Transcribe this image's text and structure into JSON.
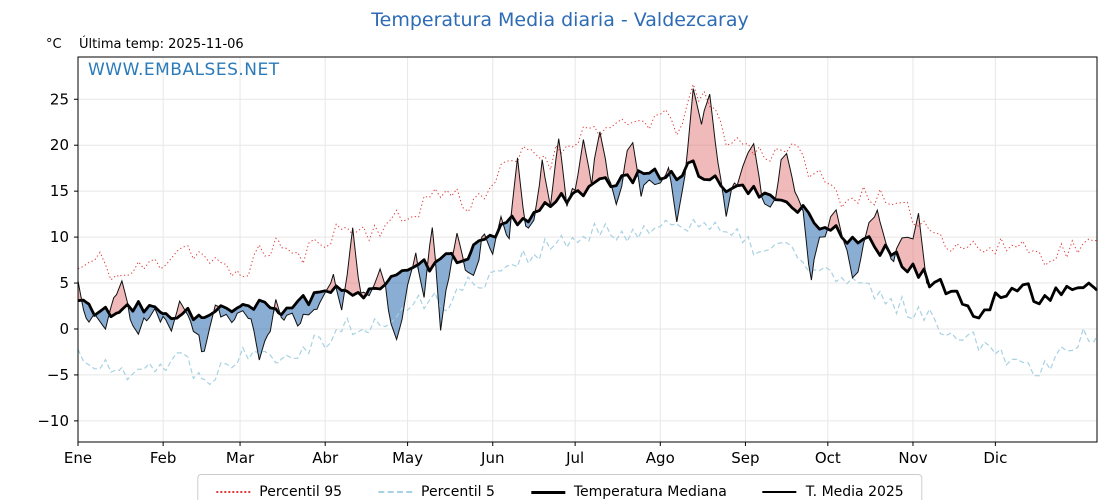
{
  "page": {
    "title": "Temperatura Media diaria - Valdezcaray",
    "unit_label": "°C",
    "last_temp_label": "Última temp: 2025-11-06",
    "watermark": "WWW.EMBALSES.NET"
  },
  "chart_data": {
    "type": "line",
    "title": "Temperatura Media diaria - Valdezcaray",
    "ylabel": "°C",
    "xlim": [
      0,
      371
    ],
    "ylim": [
      -12.3,
      29.6
    ],
    "grid": true,
    "legend_position": "bottom",
    "last_date": "2025-11-06",
    "yticks": {
      "values": [
        -10,
        -5,
        0,
        5,
        10,
        15,
        20,
        25
      ],
      "labels": [
        "−10",
        "−5",
        "0",
        "5",
        "10",
        "15",
        "20",
        "25"
      ]
    },
    "months": {
      "labels": [
        "Ene",
        "Feb",
        "Mar",
        "Abr",
        "May",
        "Jun",
        "Jul",
        "Ago",
        "Sep",
        "Oct",
        "Nov",
        "Dic"
      ],
      "start_days": [
        0,
        31,
        59,
        90,
        120,
        151,
        181,
        212,
        243,
        273,
        304,
        334
      ]
    },
    "colors": {
      "grid": "#e7e7e7",
      "spine": "#000000"
    },
    "fills": {
      "above_color": "#dd6666",
      "above_opacity": 0.45,
      "below_color": "#3a77b5",
      "below_opacity": 0.6
    },
    "series": [
      {
        "name": "Percentil 95",
        "style": "dotted",
        "color": "#e03a3a",
        "width": 1,
        "noise_amp": 1.2,
        "points": [
          [
            0,
            6.5
          ],
          [
            8,
            7.5
          ],
          [
            15,
            5.5
          ],
          [
            22,
            6.5
          ],
          [
            31,
            7.5
          ],
          [
            38,
            9.2
          ],
          [
            45,
            8
          ],
          [
            52,
            6.5
          ],
          [
            59,
            6
          ],
          [
            66,
            8
          ],
          [
            73,
            9.5
          ],
          [
            80,
            7.5
          ],
          [
            90,
            10
          ],
          [
            97,
            11
          ],
          [
            105,
            10.5
          ],
          [
            112,
            11.5
          ],
          [
            120,
            12
          ],
          [
            128,
            14.5
          ],
          [
            135,
            15
          ],
          [
            143,
            13.5
          ],
          [
            151,
            16
          ],
          [
            158,
            18
          ],
          [
            165,
            19.5
          ],
          [
            172,
            18.5
          ],
          [
            181,
            21
          ],
          [
            188,
            22
          ],
          [
            196,
            21.5
          ],
          [
            204,
            22.5
          ],
          [
            212,
            23
          ],
          [
            218,
            22
          ],
          [
            224,
            25.5
          ],
          [
            230,
            24.5
          ],
          [
            236,
            21
          ],
          [
            243,
            20
          ],
          [
            250,
            19
          ],
          [
            258,
            20
          ],
          [
            265,
            18
          ],
          [
            273,
            15.5
          ],
          [
            280,
            14
          ],
          [
            288,
            15
          ],
          [
            296,
            13
          ],
          [
            304,
            12.5
          ],
          [
            310,
            11
          ],
          [
            318,
            9.5
          ],
          [
            326,
            9
          ],
          [
            334,
            8.5
          ],
          [
            342,
            9.5
          ],
          [
            350,
            8
          ],
          [
            358,
            8.5
          ],
          [
            364,
            9
          ],
          [
            371,
            9
          ]
        ]
      },
      {
        "name": "Percentil 5",
        "style": "dashed",
        "color": "#a8d1e3",
        "width": 1.2,
        "noise_amp": 1.2,
        "points": [
          [
            0,
            -2.5
          ],
          [
            8,
            -4
          ],
          [
            15,
            -5
          ],
          [
            22,
            -3.5
          ],
          [
            31,
            -4
          ],
          [
            38,
            -3
          ],
          [
            45,
            -5.5
          ],
          [
            52,
            -4
          ],
          [
            59,
            -3
          ],
          [
            66,
            -1.5
          ],
          [
            73,
            -3
          ],
          [
            80,
            -2
          ],
          [
            90,
            -1
          ],
          [
            97,
            0.5
          ],
          [
            105,
            -0.5
          ],
          [
            112,
            1
          ],
          [
            120,
            2
          ],
          [
            128,
            3.5
          ],
          [
            135,
            3
          ],
          [
            143,
            5
          ],
          [
            151,
            6
          ],
          [
            158,
            7.5
          ],
          [
            165,
            8
          ],
          [
            172,
            9
          ],
          [
            181,
            9.5
          ],
          [
            188,
            10.5
          ],
          [
            196,
            10
          ],
          [
            204,
            11
          ],
          [
            212,
            11
          ],
          [
            218,
            11.5
          ],
          [
            224,
            12
          ],
          [
            230,
            11
          ],
          [
            236,
            10
          ],
          [
            243,
            9.5
          ],
          [
            250,
            8.5
          ],
          [
            258,
            9
          ],
          [
            265,
            7
          ],
          [
            273,
            6
          ],
          [
            280,
            5
          ],
          [
            288,
            4
          ],
          [
            296,
            3
          ],
          [
            304,
            2
          ],
          [
            310,
            1
          ],
          [
            318,
            0
          ],
          [
            326,
            -1
          ],
          [
            334,
            -2
          ],
          [
            342,
            -3.5
          ],
          [
            350,
            -4.5
          ],
          [
            358,
            -2
          ],
          [
            364,
            -1
          ],
          [
            371,
            -0.5
          ]
        ]
      },
      {
        "name": "Temperatura Mediana",
        "style": "solid-thick",
        "color": "#000000",
        "width": 2.8,
        "noise_amp": 0.8,
        "points": [
          [
            0,
            3
          ],
          [
            8,
            2
          ],
          [
            15,
            1.5
          ],
          [
            22,
            2.5
          ],
          [
            31,
            1.5
          ],
          [
            38,
            2
          ],
          [
            45,
            1
          ],
          [
            52,
            2
          ],
          [
            59,
            2
          ],
          [
            66,
            2.5
          ],
          [
            73,
            2
          ],
          [
            80,
            3
          ],
          [
            90,
            3.5
          ],
          [
            97,
            4.5
          ],
          [
            105,
            4
          ],
          [
            112,
            5
          ],
          [
            120,
            6
          ],
          [
            128,
            7
          ],
          [
            135,
            7.5
          ],
          [
            143,
            8.5
          ],
          [
            151,
            10
          ],
          [
            158,
            11.5
          ],
          [
            165,
            12.5
          ],
          [
            172,
            13.5
          ],
          [
            181,
            15
          ],
          [
            188,
            15.5
          ],
          [
            196,
            16
          ],
          [
            204,
            16.5
          ],
          [
            212,
            17
          ],
          [
            218,
            17
          ],
          [
            224,
            17.5
          ],
          [
            230,
            16.5
          ],
          [
            236,
            15.5
          ],
          [
            243,
            15
          ],
          [
            250,
            14.5
          ],
          [
            258,
            14
          ],
          [
            265,
            12.5
          ],
          [
            273,
            11
          ],
          [
            280,
            10
          ],
          [
            288,
            9.5
          ],
          [
            296,
            8
          ],
          [
            304,
            6.5
          ],
          [
            312,
            5
          ],
          [
            320,
            4
          ],
          [
            328,
            0.8
          ],
          [
            336,
            4
          ],
          [
            344,
            4.5
          ],
          [
            352,
            3
          ],
          [
            358,
            4.5
          ],
          [
            364,
            4.5
          ],
          [
            371,
            4.5
          ]
        ]
      },
      {
        "name": "T. Media 2025",
        "style": "solid-thin",
        "color": "#111111",
        "width": 1,
        "noise_amp": 1.1,
        "ends_at_day": 309,
        "points": [
          [
            0,
            4.5
          ],
          [
            3,
            2
          ],
          [
            6,
            1
          ],
          [
            10,
            0
          ],
          [
            13,
            3.5
          ],
          [
            16,
            5
          ],
          [
            19,
            1
          ],
          [
            22,
            0.5
          ],
          [
            25,
            0
          ],
          [
            28,
            1.5
          ],
          [
            31,
            2
          ],
          [
            34,
            -0.5
          ],
          [
            37,
            3
          ],
          [
            41,
            1
          ],
          [
            45,
            -2.5
          ],
          [
            48,
            0.5
          ],
          [
            51,
            2
          ],
          [
            54,
            0.5
          ],
          [
            57,
            1
          ],
          [
            60,
            2.5
          ],
          [
            63,
            1.5
          ],
          [
            66,
            -3
          ],
          [
            69,
            0
          ],
          [
            72,
            2.5
          ],
          [
            75,
            1
          ],
          [
            78,
            2
          ],
          [
            81,
            1
          ],
          [
            84,
            2
          ],
          [
            87,
            1.5
          ],
          [
            90,
            3
          ],
          [
            93,
            6
          ],
          [
            96,
            1.5
          ],
          [
            100,
            10.5
          ],
          [
            103,
            4
          ],
          [
            106,
            3
          ],
          [
            110,
            7.5
          ],
          [
            113,
            2
          ],
          [
            116,
            -0.5
          ],
          [
            120,
            4
          ],
          [
            123,
            9
          ],
          [
            126,
            4
          ],
          [
            129,
            10
          ],
          [
            132,
            0.5
          ],
          [
            135,
            5
          ],
          [
            138,
            11
          ],
          [
            141,
            6
          ],
          [
            144,
            5
          ],
          [
            147,
            10
          ],
          [
            151,
            8
          ],
          [
            154,
            13
          ],
          [
            157,
            10
          ],
          [
            160,
            18.5
          ],
          [
            163,
            12
          ],
          [
            166,
            11
          ],
          [
            169,
            19
          ],
          [
            172,
            13
          ],
          [
            175,
            20
          ],
          [
            178,
            14
          ],
          [
            181,
            15
          ],
          [
            184,
            21.5
          ],
          [
            187,
            15
          ],
          [
            190,
            22.5
          ],
          [
            193,
            16
          ],
          [
            196,
            13.5
          ],
          [
            199,
            18
          ],
          [
            202,
            21
          ],
          [
            205,
            14
          ],
          [
            208,
            17
          ],
          [
            212,
            16
          ],
          [
            215,
            18
          ],
          [
            218,
            12.5
          ],
          [
            221,
            17
          ],
          [
            224,
            25.5
          ],
          [
            227,
            21.5
          ],
          [
            230,
            26
          ],
          [
            233,
            18
          ],
          [
            236,
            12
          ],
          [
            239,
            16
          ],
          [
            243,
            18
          ],
          [
            246,
            19.5
          ],
          [
            249,
            14
          ],
          [
            252,
            13
          ],
          [
            255,
            16
          ],
          [
            258,
            20
          ],
          [
            261,
            15
          ],
          [
            264,
            13
          ],
          [
            267,
            5.5
          ],
          [
            270,
            10
          ],
          [
            273,
            11
          ],
          [
            276,
            13
          ],
          [
            279,
            9
          ],
          [
            282,
            5.5
          ],
          [
            285,
            8
          ],
          [
            288,
            11
          ],
          [
            291,
            13
          ],
          [
            294,
            9
          ],
          [
            297,
            7
          ],
          [
            300,
            10
          ],
          [
            304,
            9
          ],
          [
            306,
            12
          ],
          [
            308,
            7
          ],
          [
            309,
            5
          ]
        ]
      }
    ]
  }
}
